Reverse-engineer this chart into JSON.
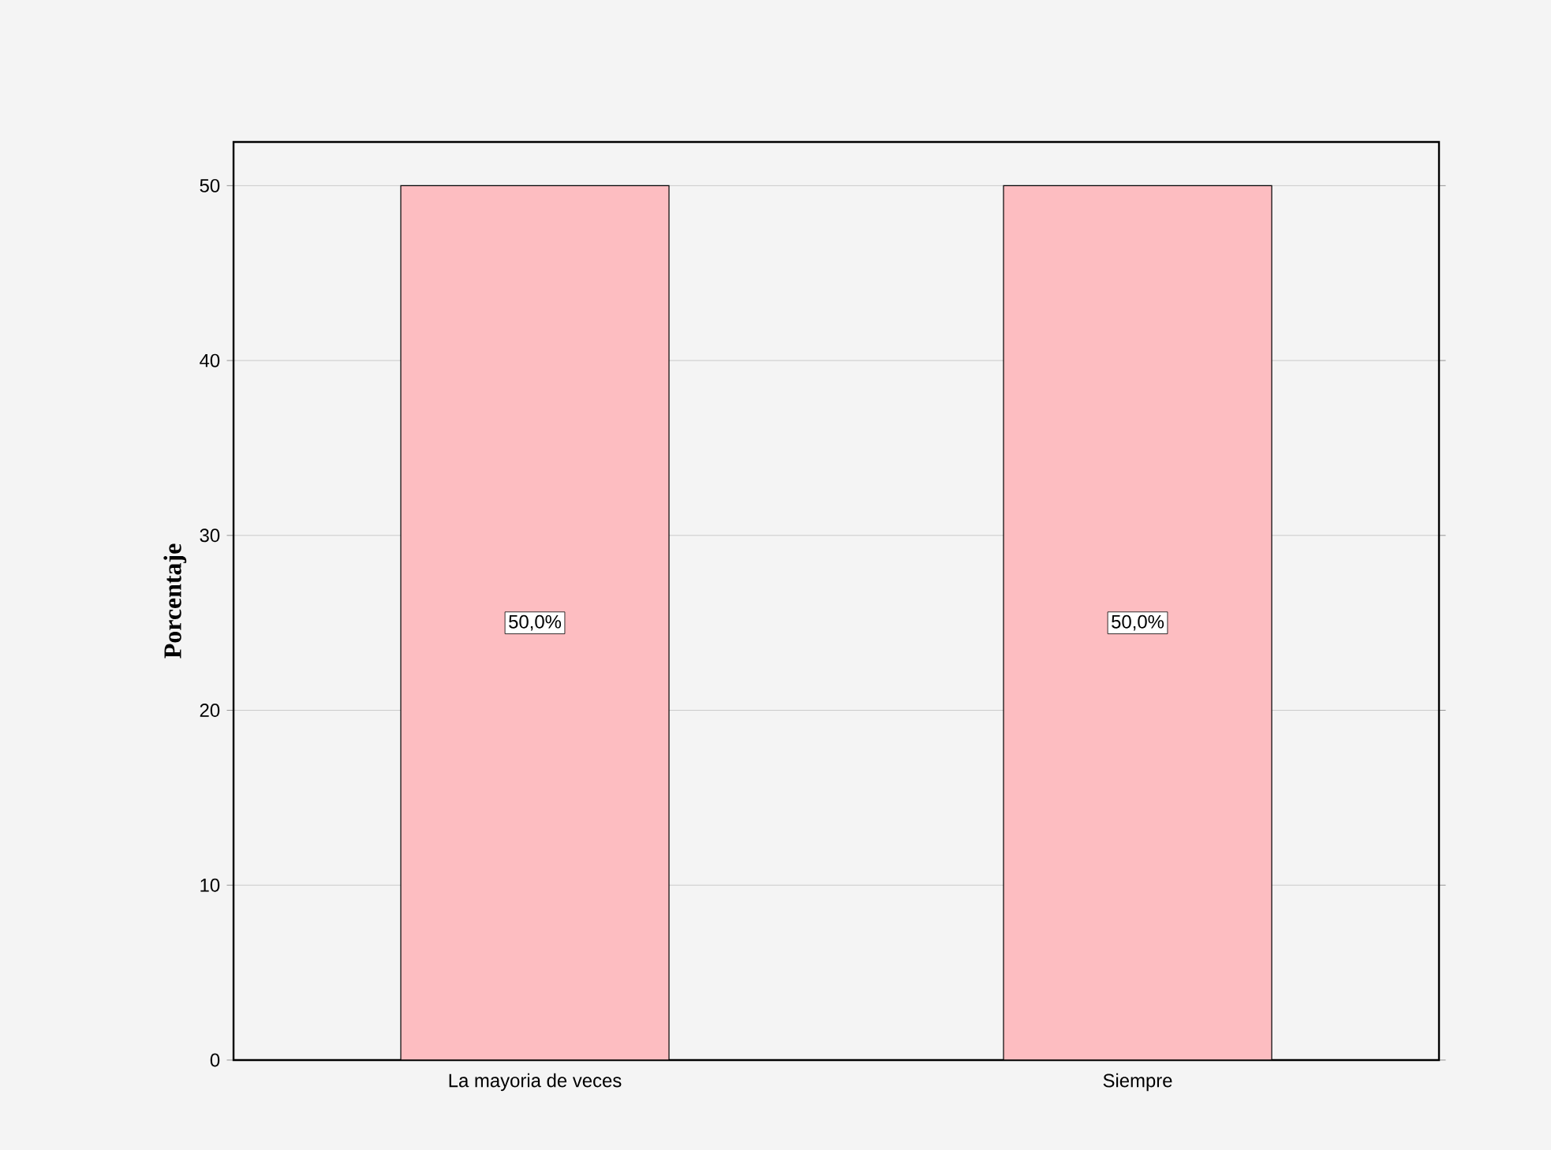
{
  "chart_data": {
    "type": "bar",
    "ylabel": "Porcentaje",
    "categories": [
      "La mayoria de veces",
      "Siempre"
    ],
    "values": [
      50,
      50
    ],
    "value_labels": [
      "50,0%",
      "50,0%"
    ],
    "color": "#fdbdc1",
    "ylim": [
      0,
      52.5
    ],
    "yticks": [
      0,
      10,
      20,
      30,
      40,
      50
    ],
    "grid": "y"
  }
}
